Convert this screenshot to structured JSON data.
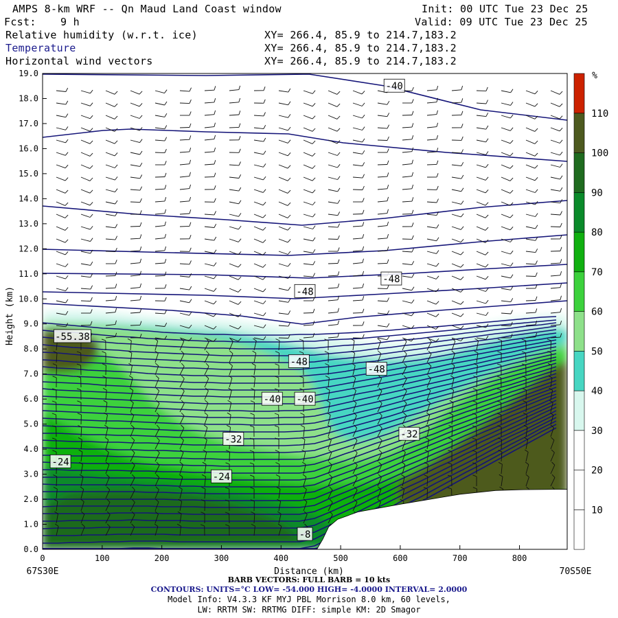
{
  "header": {
    "title": "AMPS 8-km WRF -- Qn Maud Land Coast window",
    "init": "Init: 00 UTC Tue 23 Dec 25",
    "fcst_label": "Fcst:",
    "fcst_value": "9 h",
    "valid": "Valid: 09 UTC Tue 23 Dec 25",
    "fields": [
      {
        "name": "Relative humidity (w.r.t. ice)",
        "xy": "XY= 266.4, 85.9 to 214.7,183.2"
      },
      {
        "name": "Temperature",
        "xy": "XY= 266.4, 85.9 to 214.7,183.2"
      },
      {
        "name": "Horizontal wind vectors",
        "xy": "XY= 266.4, 85.9 to 214.7,183.2"
      }
    ]
  },
  "chart_data": {
    "type": "contour",
    "xlabel": "Distance (km)",
    "ylabel": "Height (km)",
    "xlim": [
      0,
      880
    ],
    "ylim": [
      0,
      19
    ],
    "x_ticks": [
      0,
      100,
      200,
      300,
      400,
      500,
      600,
      700,
      800
    ],
    "y_ticks": [
      "0.0",
      "1.0",
      "2.0",
      "3.0",
      "4.0",
      "5.0",
      "6.0",
      "7.0",
      "8.0",
      "9.0",
      "10.0",
      "11.0",
      "12.0",
      "13.0",
      "14.0",
      "15.0",
      "16.0",
      "17.0",
      "18.0",
      "19.0"
    ],
    "left_endpoint": "67S30E",
    "right_endpoint": "70S50E",
    "colorbar": {
      "unit": "%",
      "ticks": [
        10,
        20,
        30,
        40,
        50,
        60,
        70,
        80,
        90,
        100,
        110
      ],
      "colors": [
        "#ffffff",
        "#ffffff",
        "#ffffff",
        "#d8f7ee",
        "#47d6c2",
        "#8ee08a",
        "#3cd13c",
        "#10b010",
        "#0a8a2a",
        "#1f6b1f",
        "#4d5a1f",
        "#cc2200"
      ]
    },
    "contour_labels": [
      {
        "text": "-40",
        "x": 590,
        "y": 18.5
      },
      {
        "text": "-48",
        "x": 440,
        "y": 10.3
      },
      {
        "text": "-48",
        "x": 585,
        "y": 10.8
      },
      {
        "text": "-48",
        "x": 430,
        "y": 7.5
      },
      {
        "text": "-48",
        "x": 560,
        "y": 7.2
      },
      {
        "text": "-40",
        "x": 385,
        "y": 6.0
      },
      {
        "text": "-40",
        "x": 440,
        "y": 6.0
      },
      {
        "text": "-32",
        "x": 320,
        "y": 4.4
      },
      {
        "text": "-32",
        "x": 615,
        "y": 4.6
      },
      {
        "text": "-24",
        "x": 30,
        "y": 3.5
      },
      {
        "text": "-24",
        "x": 300,
        "y": 2.9
      },
      {
        "text": "-55.38",
        "x": 50,
        "y": 8.5
      },
      {
        "text": "-8",
        "x": 440,
        "y": 0.6
      }
    ],
    "terrain": [
      [
        460,
        0
      ],
      [
        470,
        0.4
      ],
      [
        480,
        0.9
      ],
      [
        495,
        1.2
      ],
      [
        530,
        1.5
      ],
      [
        600,
        1.8
      ],
      [
        650,
        2.0
      ],
      [
        700,
        2.2
      ],
      [
        760,
        2.35
      ],
      [
        800,
        2.38
      ],
      [
        880,
        2.4
      ]
    ],
    "contours": {
      "units": "°C",
      "low": -54.0,
      "high": -4.0,
      "interval": 2.0
    }
  },
  "footer": {
    "barb": "BARB VECTORS: FULL BARB = 10 kts",
    "contours": "CONTOURS: UNITS=°C LOW= -54.000 HIGH= -4.0000 INTERVAL= 2.0000",
    "model": "Model Info: V4.3.3 KF MYJ PBL Morrison 8.0 km, 60 levels,",
    "physics": "LW: RRTM SW: RRTMG DIFF: simple KM: 2D Smagor"
  }
}
